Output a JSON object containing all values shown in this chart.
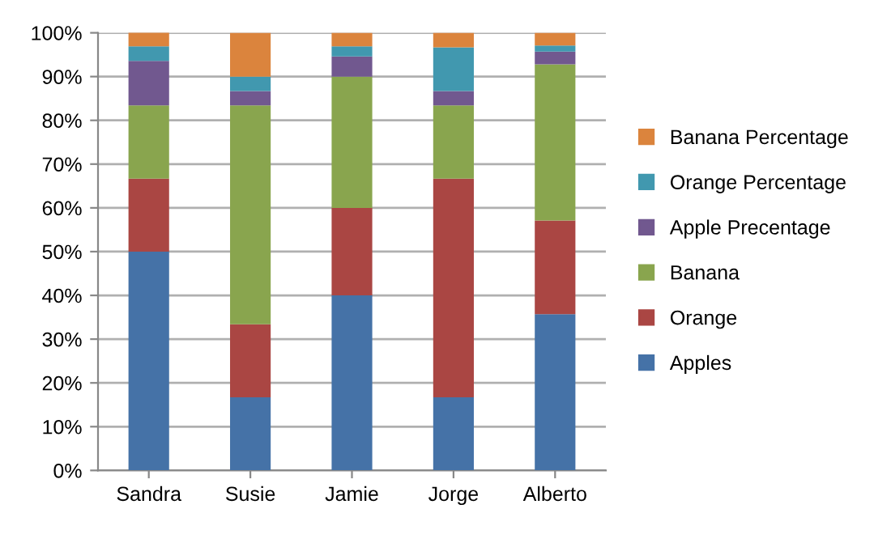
{
  "chart_data": {
    "type": "bar",
    "stacked": true,
    "categories": [
      "Sandra",
      "Susie",
      "Jamie",
      "Jorge",
      "Alberto"
    ],
    "series": [
      {
        "name": "Apples",
        "color": "#4572a7",
        "values": [
          50,
          16.7,
          40,
          16.7,
          35.7
        ]
      },
      {
        "name": "Orange",
        "color": "#aa4643",
        "values": [
          16.7,
          16.7,
          20,
          50,
          21.4
        ]
      },
      {
        "name": "Banana",
        "color": "#89a54e",
        "values": [
          16.7,
          50,
          30,
          16.7,
          35.7
        ]
      },
      {
        "name": "Apple Precentage",
        "color": "#71588f",
        "values": [
          10.2,
          3.3,
          4.6,
          3.3,
          2.9
        ]
      },
      {
        "name": "Orange Percentage",
        "color": "#4198af",
        "values": [
          3.3,
          3.3,
          2.3,
          10,
          1.4
        ]
      },
      {
        "name": "Banana Percentage",
        "color": "#db843d",
        "values": [
          3.2,
          10,
          3.1,
          3.3,
          2.9
        ]
      }
    ],
    "ylim": [
      0,
      100
    ],
    "yticks": [
      {
        "value": 0,
        "label": "0%"
      },
      {
        "value": 10,
        "label": "10%"
      },
      {
        "value": 20,
        "label": "20%"
      },
      {
        "value": 30,
        "label": "30%"
      },
      {
        "value": 40,
        "label": "40%"
      },
      {
        "value": 50,
        "label": "50%"
      },
      {
        "value": 60,
        "label": "60%"
      },
      {
        "value": 70,
        "label": "70%"
      },
      {
        "value": 80,
        "label": "80%"
      },
      {
        "value": 90,
        "label": "90%"
      },
      {
        "value": 100,
        "label": "100%"
      }
    ],
    "grid": "y",
    "legend": "right"
  }
}
